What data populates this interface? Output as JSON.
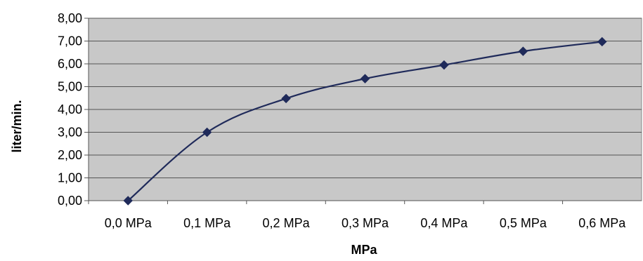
{
  "chart_data": {
    "type": "line",
    "title": "",
    "xlabel": "MPa",
    "ylabel": "liter/min.",
    "categories": [
      "0,0 MPa",
      "0,1 MPa",
      "0,2 MPa",
      "0,3 MPa",
      "0,4 MPa",
      "0,5 MPa",
      "0,6 MPa"
    ],
    "series": [
      {
        "values": [
          0.0,
          3.0,
          4.48,
          5.35,
          5.95,
          6.55,
          6.97
        ],
        "color": "#1f2a5a",
        "marker": "diamond"
      }
    ],
    "ylim": [
      0,
      8
    ],
    "yticks": [
      "0,00",
      "1,00",
      "2,00",
      "3,00",
      "4,00",
      "5,00",
      "6,00",
      "7,00",
      "8,00"
    ],
    "grid": true,
    "legend": "none",
    "plot_background": "#c8c8c8",
    "gridline_color": "#555555"
  }
}
